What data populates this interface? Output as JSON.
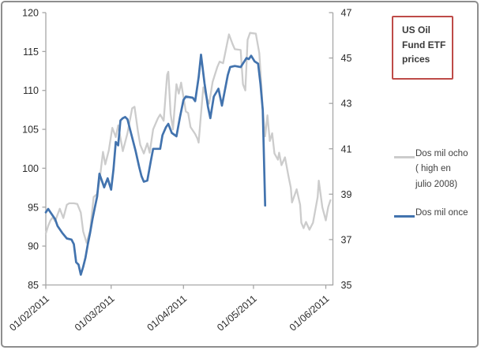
{
  "window": {
    "background": "#ffffff",
    "border_color": "#8e8e8e"
  },
  "annotation": {
    "text": "US Oil Fund ETF prices",
    "lines": [
      "US Oil",
      "Fund ETF",
      "prices"
    ],
    "border_color": "#be4b48",
    "text_color": "#3a3a3a"
  },
  "legend": {
    "position": "right",
    "items": [
      {
        "label": "Dos mil ocho ( high en julio 2008)",
        "lines": [
          "Dos mil ocho",
          "( high en",
          "julio 2008)"
        ],
        "color": "#cccccc"
      },
      {
        "label": "Dos mil once",
        "lines": [
          "Dos mil once"
        ],
        "color": "#4273ae"
      }
    ]
  },
  "chart_data": {
    "type": "line",
    "title": "US Oil Fund ETF prices",
    "grid": false,
    "axis_color": "#a6a6a6",
    "label_color": "#2b2b2b",
    "x_axis": {
      "tick_labels": [
        "01/02/2011",
        "01/03/2011",
        "01/04/2011",
        "01/05/2011",
        "01/06/2011"
      ],
      "tick_days": [
        0,
        28,
        59,
        89,
        120
      ],
      "range_days": [
        0,
        123
      ]
    },
    "left_axis": {
      "min": 85,
      "max": 120,
      "step": 5,
      "ticks": [
        120,
        115,
        110,
        105,
        100,
        95,
        90,
        85
      ]
    },
    "right_axis": {
      "min": 35,
      "max": 47,
      "step": 2,
      "ticks": [
        47,
        45,
        43,
        41,
        39,
        37,
        35
      ]
    },
    "series": [
      {
        "name": "Dos mil ocho ( high en julio 2008)",
        "axis": "left",
        "color": "#cccccc",
        "width": 2.3,
        "points": [
          [
            0,
            91.6
          ],
          [
            1,
            92.6
          ],
          [
            2,
            93.3
          ],
          [
            3,
            93.7
          ],
          [
            4,
            93.2
          ],
          [
            6,
            94.8
          ],
          [
            7.5,
            93.6
          ],
          [
            9,
            95.3
          ],
          [
            10,
            95.5
          ],
          [
            12,
            95.5
          ],
          [
            13.5,
            95.4
          ],
          [
            15,
            94.3
          ],
          [
            16,
            91.9
          ],
          [
            17.5,
            90.4
          ],
          [
            19,
            92.0
          ],
          [
            20.5,
            96.3
          ],
          [
            22,
            96.7
          ],
          [
            23,
            98.3
          ],
          [
            24.5,
            102.1
          ],
          [
            25.5,
            100.5
          ],
          [
            27,
            102.3
          ],
          [
            28.5,
            105.2
          ],
          [
            30,
            104.0
          ],
          [
            31,
            105.5
          ],
          [
            33,
            102.2
          ],
          [
            35,
            104.5
          ],
          [
            37,
            107.7
          ],
          [
            38,
            107.9
          ],
          [
            39.5,
            104.7
          ],
          [
            40.5,
            103.0
          ],
          [
            42,
            101.9
          ],
          [
            43.5,
            103.2
          ],
          [
            44.5,
            102.0
          ],
          [
            46,
            105.0
          ],
          [
            48,
            106.4
          ],
          [
            49,
            106.9
          ],
          [
            50.5,
            106.1
          ],
          [
            52,
            112.0
          ],
          [
            52.5,
            112.4
          ],
          [
            53.5,
            107.0
          ],
          [
            54.5,
            105.0
          ],
          [
            56,
            110.8
          ],
          [
            57,
            109.6
          ],
          [
            58,
            111.0
          ],
          [
            60,
            107.3
          ],
          [
            61,
            107.1
          ],
          [
            62,
            105.3
          ],
          [
            64,
            104.4
          ],
          [
            65,
            103.8
          ],
          [
            65.5,
            103.3
          ],
          [
            66.5,
            107.0
          ],
          [
            67.5,
            110.4
          ],
          [
            69,
            109.0
          ],
          [
            70,
            108.3
          ],
          [
            71.5,
            111.1
          ],
          [
            73.5,
            113.0
          ],
          [
            74.5,
            113.7
          ],
          [
            76,
            113.5
          ],
          [
            78.5,
            117.2
          ],
          [
            80,
            116.0
          ],
          [
            81,
            115.3
          ],
          [
            83.5,
            115.2
          ],
          [
            84.5,
            110.8
          ],
          [
            85.5,
            110.0
          ],
          [
            86.5,
            116.5
          ],
          [
            87.5,
            117.4
          ],
          [
            90,
            117.3
          ],
          [
            91.5,
            114.8
          ],
          [
            92.5,
            110.0
          ],
          [
            93,
            107.4
          ],
          [
            94,
            104.1
          ],
          [
            95,
            106.8
          ],
          [
            96,
            103.5
          ],
          [
            97,
            104.5
          ],
          [
            98,
            101.9
          ],
          [
            99.5,
            101.1
          ],
          [
            100,
            102.0
          ],
          [
            101,
            100.4
          ],
          [
            102.5,
            101.4
          ],
          [
            104,
            99.0
          ],
          [
            105,
            97.5
          ],
          [
            105.5,
            95.6
          ],
          [
            107.5,
            97.3
          ],
          [
            109,
            95.3
          ],
          [
            109.5,
            93.0
          ],
          [
            110.5,
            92.3
          ],
          [
            111.5,
            93.1
          ],
          [
            113,
            92.1
          ],
          [
            114.5,
            93.0
          ],
          [
            116.5,
            96.3
          ],
          [
            117,
            98.4
          ],
          [
            118.5,
            95.0
          ],
          [
            120,
            93.3
          ],
          [
            121,
            95.0
          ],
          [
            122,
            95.9
          ]
        ]
      },
      {
        "name": "Dos mil once",
        "axis": "right",
        "color": "#4273ae",
        "width": 2.7,
        "points": [
          [
            0,
            38.2
          ],
          [
            1,
            38.35
          ],
          [
            2,
            38.2
          ],
          [
            4,
            37.9
          ],
          [
            5,
            37.6
          ],
          [
            7,
            37.3
          ],
          [
            9,
            37.05
          ],
          [
            11,
            37.0
          ],
          [
            12,
            36.8
          ],
          [
            13,
            36.0
          ],
          [
            14,
            35.9
          ],
          [
            15,
            35.45
          ],
          [
            16,
            35.8
          ],
          [
            17,
            36.2
          ],
          [
            18,
            36.8
          ],
          [
            19,
            37.3
          ],
          [
            20,
            37.9
          ],
          [
            21,
            38.4
          ],
          [
            22,
            38.9
          ],
          [
            23,
            39.9
          ],
          [
            25,
            39.3
          ],
          [
            26.5,
            39.7
          ],
          [
            28,
            39.2
          ],
          [
            29,
            40.1
          ],
          [
            30,
            41.3
          ],
          [
            31,
            41.15
          ],
          [
            32,
            42.25
          ],
          [
            33,
            42.35
          ],
          [
            34,
            42.4
          ],
          [
            35,
            42.3
          ],
          [
            36,
            41.9
          ],
          [
            37,
            41.5
          ],
          [
            38.5,
            40.9
          ],
          [
            40,
            40.2
          ],
          [
            41,
            39.8
          ],
          [
            42,
            39.55
          ],
          [
            43.5,
            39.6
          ],
          [
            45,
            40.45
          ],
          [
            46,
            41.0
          ],
          [
            49,
            41.0
          ],
          [
            50,
            41.6
          ],
          [
            51.5,
            41.95
          ],
          [
            52.5,
            42.1
          ],
          [
            54,
            41.7
          ],
          [
            56,
            41.55
          ],
          [
            57.5,
            42.4
          ],
          [
            59,
            43.15
          ],
          [
            60,
            43.3
          ],
          [
            63,
            43.25
          ],
          [
            64,
            43.1
          ],
          [
            65.5,
            44.15
          ],
          [
            66.5,
            45.15
          ],
          [
            68,
            43.9
          ],
          [
            69.5,
            42.85
          ],
          [
            70.5,
            42.35
          ],
          [
            72,
            43.3
          ],
          [
            74,
            43.65
          ],
          [
            75.5,
            42.9
          ],
          [
            78,
            44.25
          ],
          [
            79,
            44.6
          ],
          [
            81,
            44.65
          ],
          [
            83.5,
            44.6
          ],
          [
            86,
            45.0
          ],
          [
            87,
            44.95
          ],
          [
            88,
            45.1
          ],
          [
            89.5,
            44.85
          ],
          [
            91,
            44.75
          ],
          [
            92,
            43.85
          ],
          [
            93,
            42.7
          ],
          [
            94,
            38.5
          ]
        ]
      }
    ]
  }
}
